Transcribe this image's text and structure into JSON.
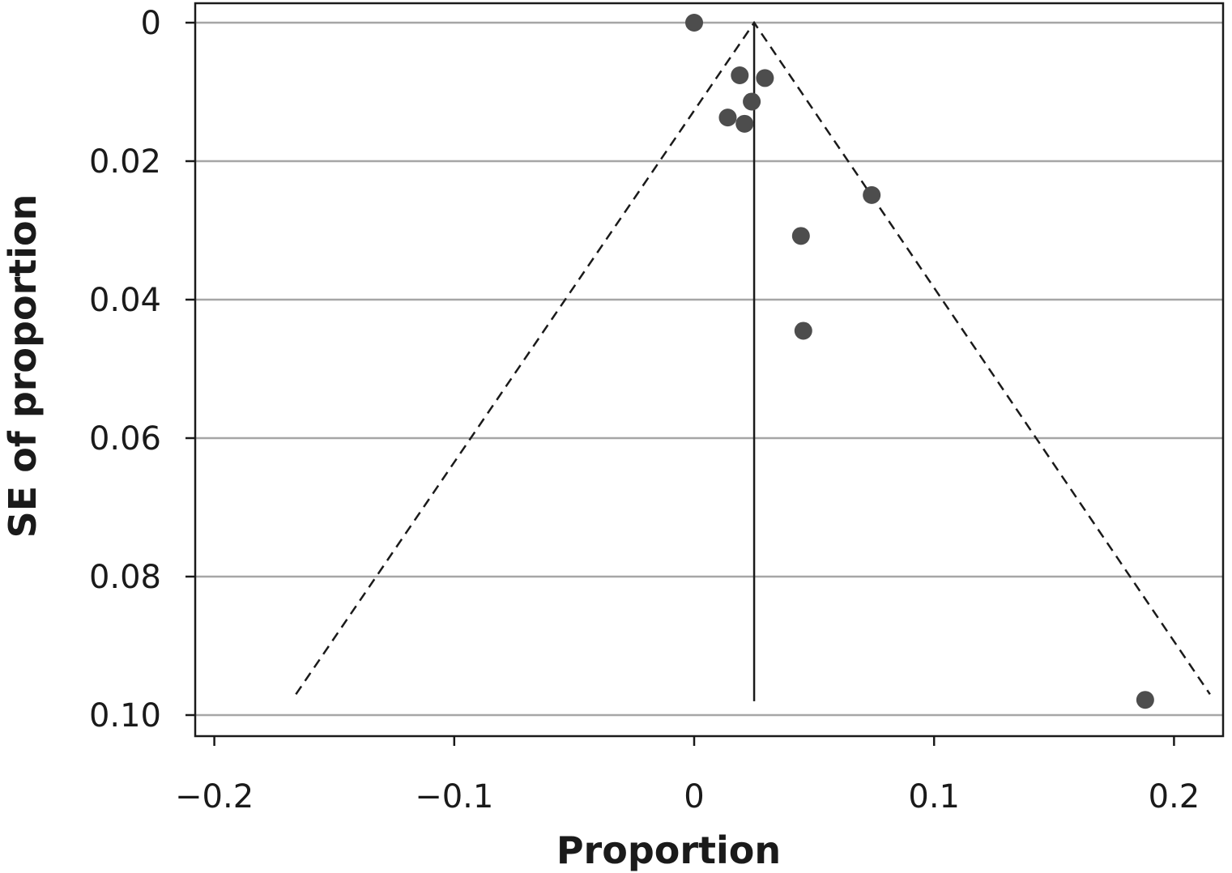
{
  "chart_data": {
    "type": "scatter",
    "xlabel": "Proportion",
    "ylabel": "SE of proportion",
    "xlim": [
      -0.208,
      0.221
    ],
    "ylim": [
      0,
      0.103
    ],
    "y_inverted": true,
    "x_ticks": [
      -0.2,
      -0.1,
      0,
      0.1,
      0.2
    ],
    "x_tick_labels": [
      "−0.2",
      "−0.1",
      "0",
      "0.1",
      "0.2"
    ],
    "y_ticks": [
      0,
      0.02,
      0.04,
      0.06,
      0.08,
      0.1
    ],
    "y_tick_labels": [
      "0",
      "0.02",
      "0.04",
      "0.06",
      "0.08",
      "0.10"
    ],
    "grid": "horizontal",
    "points": [
      {
        "x": 0.0,
        "y": 0.0
      },
      {
        "x": 0.019,
        "y": 0.0076
      },
      {
        "x": 0.0295,
        "y": 0.008
      },
      {
        "x": 0.024,
        "y": 0.0114
      },
      {
        "x": 0.014,
        "y": 0.0137
      },
      {
        "x": 0.021,
        "y": 0.0146
      },
      {
        "x": 0.074,
        "y": 0.0249
      },
      {
        "x": 0.0445,
        "y": 0.0308
      },
      {
        "x": 0.0455,
        "y": 0.0445
      },
      {
        "x": 0.188,
        "y": 0.0978
      }
    ],
    "pooled_estimate": 0.025,
    "pooled_line_se_range": [
      0,
      0.098
    ],
    "funnel": {
      "apex": {
        "x": 0.025,
        "y": 0
      },
      "left": {
        "x": -0.166,
        "y": 0.097
      },
      "right": {
        "x": 0.215,
        "y": 0.097
      }
    }
  }
}
